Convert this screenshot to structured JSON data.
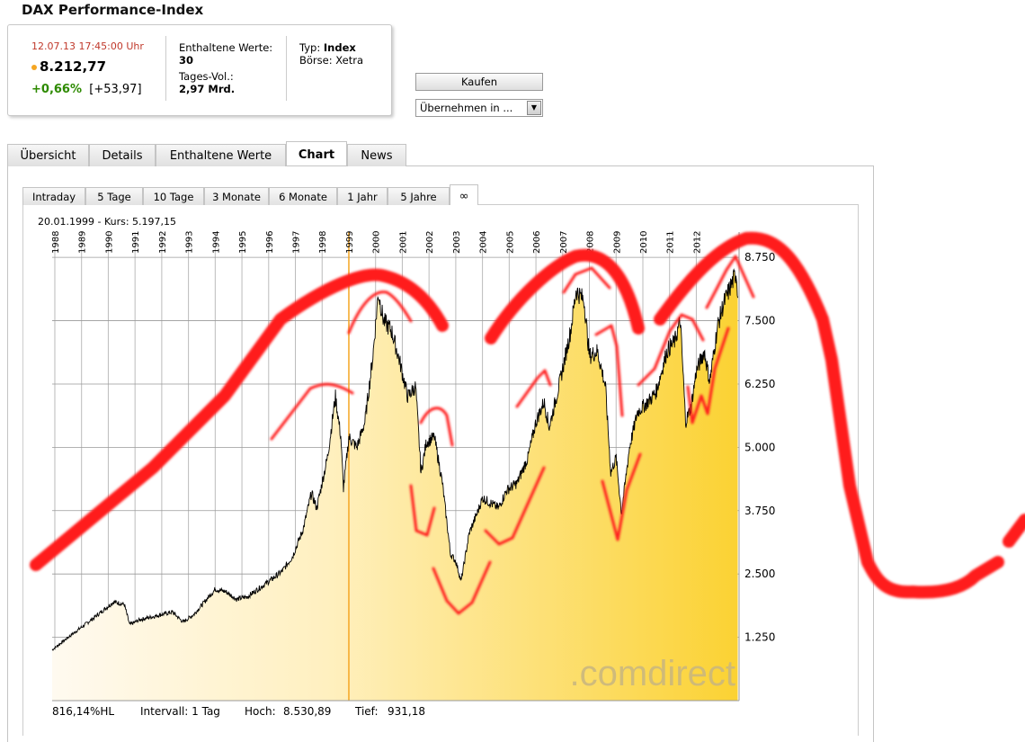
{
  "page": {
    "title": "DAX Performance-Index"
  },
  "quote": {
    "datetime": "12.07.13  17:45:00 Uhr",
    "price": "8.212,77",
    "change_pct": "+0,66%",
    "change_abs": "[+53,97]",
    "constituents_label": "Enthaltene Werte:",
    "constituents_value": "30",
    "volume_label": "Tages-Vol.:",
    "volume_value": "2,97 Mrd.",
    "type_label": "Typ:",
    "type_value": "Index",
    "exchange_label": "Börse:",
    "exchange_value": "Xetra"
  },
  "actions": {
    "buy_label": "Kaufen",
    "take_over_value": "Übernehmen in ..."
  },
  "tabs": [
    {
      "label": "Übersicht",
      "active": false
    },
    {
      "label": "Details",
      "active": false
    },
    {
      "label": "Enthaltene Werte",
      "active": false
    },
    {
      "label": "Chart",
      "active": true
    },
    {
      "label": "News",
      "active": false
    }
  ],
  "range_tabs": [
    {
      "label": "Intraday",
      "active": false
    },
    {
      "label": "5 Tage",
      "active": false
    },
    {
      "label": "10 Tage",
      "active": false
    },
    {
      "label": "3 Monate",
      "active": false
    },
    {
      "label": "6 Monate",
      "active": false
    },
    {
      "label": "1 Jahr",
      "active": false
    },
    {
      "label": "5 Jahre",
      "active": false
    },
    {
      "label": "∞",
      "active": true
    }
  ],
  "chart_info": {
    "cursor_text": "20.01.1999  -  Kurs: 5.197,15"
  },
  "footer": {
    "scale": "816,14%HL",
    "interval": "Intervall: 1 Tag",
    "high_label": "Hoch:",
    "high_value": "8.530,89",
    "low_label": "Tief:",
    "low_value": "931,18"
  },
  "watermark": ".comdirect",
  "colors": {
    "fill_light": "#fff4cf",
    "fill_dark": "#fbd233",
    "line": "#000000",
    "annotation": "#ff0000",
    "price_green": "#2d8a00",
    "time_red": "#c0392b"
  },
  "chart_data": {
    "type": "area",
    "x_ticks": [
      "1988",
      "1989",
      "1990",
      "1991",
      "1992",
      "1993",
      "1994",
      "1995",
      "1996",
      "1997",
      "1998",
      "1999",
      "2000",
      "2001",
      "2002",
      "2003",
      "2004",
      "2005",
      "2006",
      "2007",
      "2008",
      "2009",
      "2010",
      "2011",
      "2012"
    ],
    "y_ticks": [
      "1.250",
      "2.500",
      "3.750",
      "5.000",
      "6.250",
      "7.500",
      "8.750"
    ],
    "ylim": [
      0,
      9250
    ],
    "highlight_year": "1999",
    "series": [
      {
        "points": [
          [
            1987.9,
            1000
          ],
          [
            1988.5,
            1250
          ],
          [
            1989.0,
            1450
          ],
          [
            1989.5,
            1650
          ],
          [
            1990.2,
            1950
          ],
          [
            1990.6,
            1900
          ],
          [
            1990.8,
            1500
          ],
          [
            1991.2,
            1600
          ],
          [
            1991.6,
            1650
          ],
          [
            1992.0,
            1700
          ],
          [
            1992.4,
            1750
          ],
          [
            1992.8,
            1550
          ],
          [
            1993.2,
            1700
          ],
          [
            1993.6,
            1950
          ],
          [
            1994.0,
            2200
          ],
          [
            1994.4,
            2150
          ],
          [
            1994.8,
            2000
          ],
          [
            1995.2,
            2050
          ],
          [
            1995.6,
            2200
          ],
          [
            1996.0,
            2350
          ],
          [
            1996.5,
            2550
          ],
          [
            1996.9,
            2850
          ],
          [
            1997.3,
            3400
          ],
          [
            1997.6,
            4100
          ],
          [
            1997.8,
            3800
          ],
          [
            1998.2,
            4800
          ],
          [
            1998.5,
            6000
          ],
          [
            1998.7,
            5200
          ],
          [
            1998.8,
            4200
          ],
          [
            1999.0,
            5200
          ],
          [
            1999.3,
            5000
          ],
          [
            1999.6,
            5500
          ],
          [
            1999.9,
            6800
          ],
          [
            2000.1,
            8050
          ],
          [
            2000.3,
            7500
          ],
          [
            2000.6,
            7300
          ],
          [
            2000.9,
            6700
          ],
          [
            2001.2,
            6000
          ],
          [
            2001.5,
            6200
          ],
          [
            2001.7,
            4500
          ],
          [
            2001.9,
            5100
          ],
          [
            2002.2,
            5200
          ],
          [
            2002.5,
            4300
          ],
          [
            2002.8,
            2900
          ],
          [
            2003.0,
            2750
          ],
          [
            2003.2,
            2350
          ],
          [
            2003.5,
            3300
          ],
          [
            2003.8,
            3700
          ],
          [
            2004.0,
            4000
          ],
          [
            2004.3,
            3900
          ],
          [
            2004.6,
            3800
          ],
          [
            2004.9,
            4150
          ],
          [
            2005.3,
            4300
          ],
          [
            2005.7,
            4800
          ],
          [
            2006.0,
            5500
          ],
          [
            2006.3,
            5900
          ],
          [
            2006.5,
            5400
          ],
          [
            2006.9,
            6300
          ],
          [
            2007.3,
            7300
          ],
          [
            2007.5,
            8100
          ],
          [
            2007.8,
            7900
          ],
          [
            2008.0,
            6800
          ],
          [
            2008.3,
            6900
          ],
          [
            2008.6,
            6200
          ],
          [
            2008.8,
            4500
          ],
          [
            2009.0,
            4800
          ],
          [
            2009.2,
            3700
          ],
          [
            2009.5,
            5000
          ],
          [
            2009.8,
            5700
          ],
          [
            2010.2,
            5900
          ],
          [
            2010.5,
            6100
          ],
          [
            2010.9,
            6900
          ],
          [
            2011.2,
            7100
          ],
          [
            2011.4,
            7500
          ],
          [
            2011.6,
            5500
          ],
          [
            2011.8,
            5800
          ],
          [
            2012.0,
            6500
          ],
          [
            2012.3,
            6900
          ],
          [
            2012.5,
            6300
          ],
          [
            2012.8,
            7400
          ],
          [
            2013.0,
            7800
          ],
          [
            2013.3,
            8200
          ],
          [
            2013.5,
            8450
          ],
          [
            2013.55,
            7950
          ]
        ]
      }
    ]
  }
}
